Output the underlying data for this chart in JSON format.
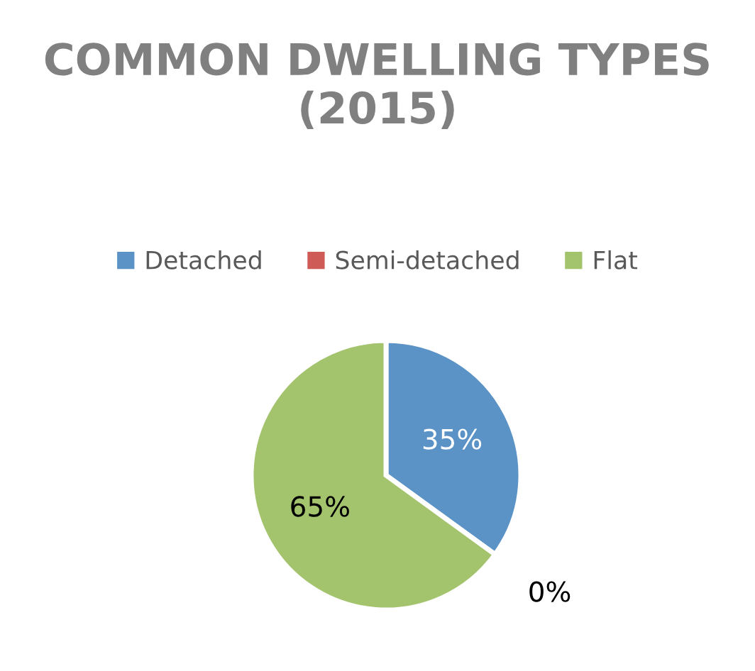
{
  "chart_data": {
    "type": "pie",
    "title": "COMMON DWELLING TYPES (2015)",
    "categories": [
      "Detached",
      "Semi-detached",
      "Flat"
    ],
    "values": [
      35,
      0,
      65
    ],
    "colors": [
      "#5b93c7",
      "#cf5b57",
      "#a3c46c"
    ],
    "value_labels": [
      "35%",
      "0%",
      "65%"
    ],
    "legend": "top"
  }
}
